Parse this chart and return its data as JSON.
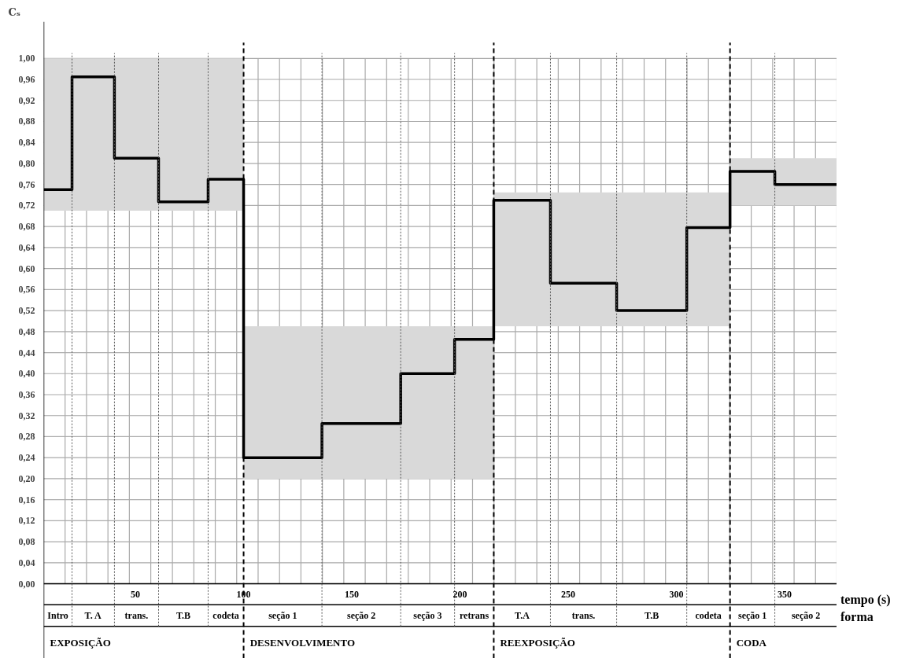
{
  "chart_data": {
    "type": "step",
    "xlabel": "tempo (s)",
    "ylabel": "Cₛ",
    "xlim": [
      7.6,
      374.2
    ],
    "ylim": [
      0,
      1.0
    ],
    "xticks": [
      {
        "value": 17.5,
        "label": null
      },
      {
        "value": 27.4,
        "label": null
      },
      {
        "value": 37.3,
        "label": null
      },
      {
        "value": 47.2,
        "label": null
      },
      50,
      {
        "value": 57.1,
        "label": null
      },
      {
        "value": 67.1,
        "label": null
      },
      {
        "value": 77.0,
        "label": null
      },
      {
        "value": 86.9,
        "label": null
      },
      {
        "value": 96.8,
        "label": null
      },
      100,
      {
        "value": 106.7,
        "label": null
      },
      {
        "value": 116.6,
        "label": null
      },
      {
        "value": 126.5,
        "label": null
      },
      {
        "value": 136.4,
        "label": null
      },
      {
        "value": 146.3,
        "label": null
      },
      150,
      {
        "value": 156.2,
        "label": null
      },
      {
        "value": 166.1,
        "label": null
      },
      {
        "value": 176.1,
        "label": null
      },
      {
        "value": 186.0,
        "label": null
      },
      {
        "value": 195.9,
        "label": null
      },
      200,
      {
        "value": 205.8,
        "label": null
      },
      {
        "value": 215.7,
        "label": null
      },
      {
        "value": 225.6,
        "label": null
      },
      {
        "value": 235.5,
        "label": null
      },
      {
        "value": 245.4,
        "label": null
      },
      250,
      {
        "value": 255.3,
        "label": null
      },
      {
        "value": 265.2,
        "label": null
      },
      {
        "value": 275.2,
        "label": null
      },
      {
        "value": 285.1,
        "label": null
      },
      {
        "value": 295.0,
        "label": null
      },
      300,
      {
        "value": 304.9,
        "label": null
      },
      {
        "value": 314.8,
        "label": null
      },
      {
        "value": 324.7,
        "label": null
      },
      {
        "value": 334.6,
        "label": null
      },
      {
        "value": 344.5,
        "label": null
      },
      350,
      {
        "value": 354.4,
        "label": null
      },
      {
        "value": 364.3,
        "label": null
      }
    ],
    "yticks": [
      {
        "value": 0,
        "label": "0,00"
      },
      {
        "value": 0.04,
        "label": "0,04"
      },
      {
        "value": 0.08,
        "label": "0,08"
      },
      {
        "value": 0.12,
        "label": "0,12"
      },
      {
        "value": 0.16,
        "label": "0,16"
      },
      {
        "value": 0.2,
        "label": "0,20"
      },
      {
        "value": 0.24,
        "label": "0,24"
      },
      {
        "value": 0.28,
        "label": "0,28"
      },
      {
        "value": 0.32,
        "label": "0,32"
      },
      {
        "value": 0.36,
        "label": "0,36"
      },
      {
        "value": 0.4,
        "label": "0,40"
      },
      {
        "value": 0.44,
        "label": "0,44"
      },
      {
        "value": 0.48,
        "label": "0,48"
      },
      {
        "value": 0.52,
        "label": "0,52"
      },
      {
        "value": 0.56,
        "label": "0,56"
      },
      {
        "value": 0.6,
        "label": "0,60"
      },
      {
        "value": 0.64,
        "label": "0,64"
      },
      {
        "value": 0.68,
        "label": "0,68"
      },
      {
        "value": 0.72,
        "label": "0,72"
      },
      {
        "value": 0.76,
        "label": "0,76"
      },
      {
        "value": 0.8,
        "label": "0,80"
      },
      {
        "value": 0.84,
        "label": "0,84"
      },
      {
        "value": 0.88,
        "label": "0,88"
      },
      {
        "value": 0.92,
        "label": "0,92"
      },
      {
        "value": 0.96,
        "label": "0,96"
      },
      {
        "value": 1.0,
        "label": "1,00"
      }
    ],
    "grid": true,
    "series": [
      {
        "color": "#000000",
        "x": [
          7.6,
          20.7,
          40.3,
          60.7,
          83.6,
          100.0,
          136.2,
          172.6,
          197.5,
          215.6,
          241.8,
          272.4,
          304.8,
          324.8,
          345.5,
          374.2
        ],
        "values": [
          0.75,
          0.965,
          0.81,
          0.727,
          0.77,
          0.24,
          0.305,
          0.4,
          0.465,
          0.73,
          0.572,
          0.52,
          0.678,
          0.785,
          0.76,
          0.76
        ],
        "lower": [
          0.71,
          0.71,
          0.71,
          0.71,
          0.71,
          0.2,
          0.2,
          0.2,
          0.2,
          0.49,
          0.49,
          0.49,
          0.49,
          0.72,
          0.72,
          0.72
        ],
        "upper": [
          1.0,
          1.0,
          1.0,
          1.0,
          1.0,
          0.49,
          0.49,
          0.49,
          0.49,
          0.745,
          0.745,
          0.745,
          0.745,
          0.81,
          0.81,
          0.81
        ]
      }
    ],
    "annotations": [
      "Intro",
      "T. A",
      "trans.",
      "T.B",
      "codeta",
      "seção 1",
      "seção 2",
      "seção 3",
      "retrans",
      "T.A",
      "trans.",
      "T.B",
      "codeta",
      "seção 1",
      "seção 2",
      "EXPOSIÇÃO",
      "DESENVOLVIMENTO",
      "REEXPOSIÇÃO",
      "CODA",
      "forma"
    ]
  }
}
